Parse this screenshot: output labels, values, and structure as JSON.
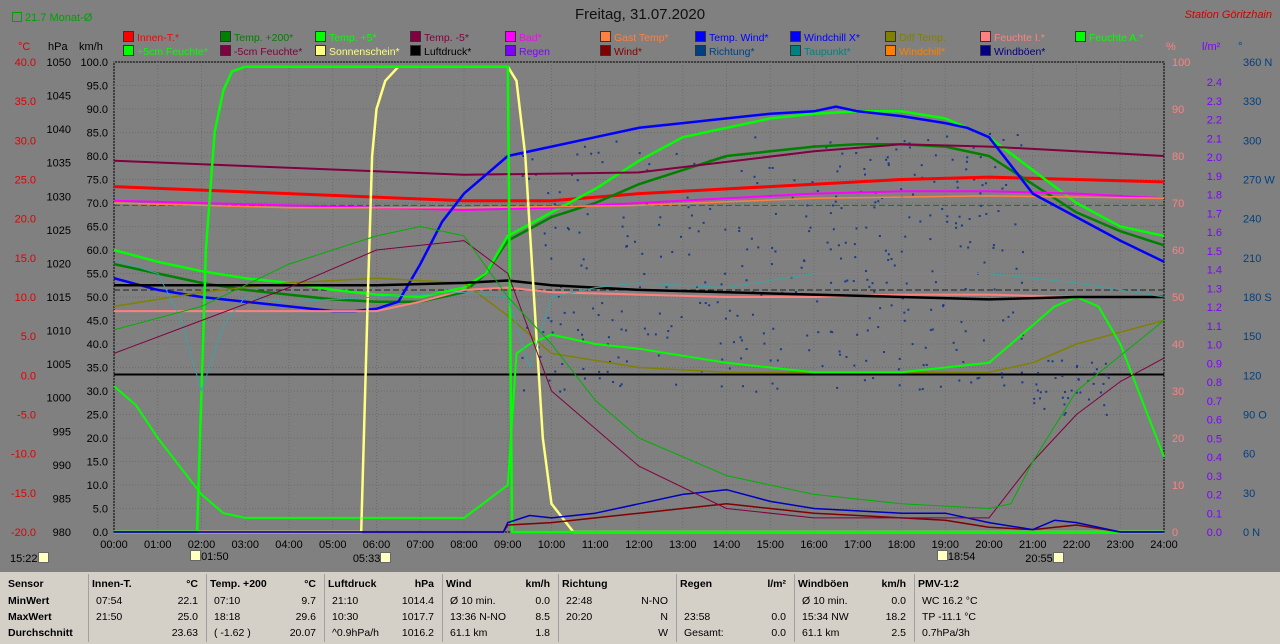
{
  "header": {
    "title": "Freitag, 31.07.2020",
    "station": "Station Göritzhain",
    "monat": "21.7 Monat-Ø"
  },
  "legend": [
    {
      "label": "Innen-T.*",
      "color": "#ff0000"
    },
    {
      "label": "Temp. +200*",
      "color": "#008000"
    },
    {
      "label": "Temp. +5*",
      "color": "#00ff00"
    },
    {
      "label": "Temp. -5*",
      "color": "#800040"
    },
    {
      "label": "Bad*",
      "color": "#ff00ff"
    },
    {
      "label": "Gast Temp*",
      "color": "#ff8040"
    },
    {
      "label": "Temp. Wind*",
      "color": "#0000ff"
    },
    {
      "label": "Windchill X*",
      "color": "#0000ff"
    },
    {
      "label": "Diff Temp.",
      "color": "#808000"
    },
    {
      "label": "Feuchte I.*",
      "color": "#ff8080"
    },
    {
      "label": "Feuchte A.*",
      "color": "#00ff00"
    },
    {
      "label": "+5cm Feuchte*",
      "color": "#00ff00"
    },
    {
      "label": "-5cm Feuchte*",
      "color": "#800040"
    },
    {
      "label": "Sonnenschein*",
      "color": "#ffff80"
    },
    {
      "label": "Luftdruck*",
      "color": "#000000"
    },
    {
      "label": "Regen",
      "color": "#8000ff"
    },
    {
      "label": "Wind*",
      "color": "#800000"
    },
    {
      "label": "Richtung*",
      "color": "#004080"
    },
    {
      "label": "Taupunkt*",
      "color": "#008080"
    },
    {
      "label": "Windchill*",
      "color": "#ff8000"
    },
    {
      "label": "Windböen*",
      "color": "#000080"
    }
  ],
  "axes": {
    "temp_unit": "°C",
    "hpa_unit": "hPa",
    "kmh_unit": "km/h",
    "pct_unit": "%",
    "rain_unit": "l/m²",
    "dir_unit": "°",
    "temp_ticks": [
      "40.0",
      "35.0",
      "30.0",
      "25.0",
      "20.0",
      "15.0",
      "10.0",
      "5.0",
      "0.0",
      "-5.0",
      "-10.0",
      "-15.0",
      "-20.0"
    ],
    "hpa_ticks": [
      "1050",
      "1045",
      "1040",
      "1035",
      "1030",
      "1025",
      "1020",
      "1015",
      "1010",
      "1005",
      "1000",
      "995",
      "990",
      "985",
      "980"
    ],
    "kmh_ticks": [
      "100.0",
      "95.0",
      "90.0",
      "85.0",
      "80.0",
      "75.0",
      "70.0",
      "65.0",
      "60.0",
      "55.0",
      "50.0",
      "45.0",
      "40.0",
      "35.0",
      "30.0",
      "25.0",
      "20.0",
      "15.0",
      "10.0",
      "5.0",
      "0.0"
    ],
    "pct_ticks": [
      "100",
      "90",
      "80",
      "70",
      "60",
      "50",
      "40",
      "30",
      "20",
      "10",
      "0"
    ],
    "rain_ticks": [
      "2.4",
      "2.3",
      "2.2",
      "2.1",
      "2.0",
      "1.9",
      "1.8",
      "1.7",
      "1.6",
      "1.5",
      "1.4",
      "1.3",
      "1.2",
      "1.1",
      "1.0",
      "0.9",
      "0.8",
      "0.7",
      "0.6",
      "0.5",
      "0.4",
      "0.3",
      "0.2",
      "0.1",
      "0.0"
    ],
    "dir_ticks": [
      "360 N",
      "330",
      "300",
      "270 W",
      "240",
      "210",
      "180 S",
      "150",
      "120",
      "90 O",
      "60",
      "30",
      "0 N"
    ],
    "time_ticks": [
      "00:00",
      "01:00",
      "02:00",
      "03:00",
      "04:00",
      "05:00",
      "06:00",
      "07:00",
      "08:00",
      "09:00",
      "10:00",
      "11:00",
      "12:00",
      "13:00",
      "14:00",
      "15:00",
      "16:00",
      "17:00",
      "18:00",
      "19:00",
      "20:00",
      "21:00",
      "22:00",
      "23:00",
      "24:00"
    ]
  },
  "markers": [
    {
      "label": "15:22",
      "hour": 0.2
    },
    {
      "label": "01:50",
      "hour": 1.83
    },
    {
      "label": "05:33",
      "hour": 5.55
    },
    {
      "label": "18:54",
      "hour": 18.9
    },
    {
      "label": "20:55",
      "hour": 20.92
    }
  ],
  "chart_data": {
    "type": "line",
    "x_unit": "hour",
    "xlim": [
      0,
      24
    ],
    "ylim_kmh": [
      0,
      100
    ],
    "series": [
      {
        "name": "Innen-T.*",
        "color": "#ff0000",
        "width": 3,
        "x": [
          0,
          4,
          8,
          10,
          12,
          14,
          16,
          18,
          20,
          22,
          24
        ],
        "y": [
          73.5,
          72,
          70.5,
          70.5,
          72,
          73,
          74,
          75,
          75.5,
          75,
          74.5
        ]
      },
      {
        "name": "Temp. +200*",
        "color": "#008000",
        "width": 2.5,
        "x": [
          0,
          1,
          2,
          3,
          4,
          5,
          6,
          7,
          8,
          8.5,
          9,
          10,
          11,
          12,
          13,
          14,
          15,
          16,
          17,
          18,
          19,
          20,
          21,
          22,
          23,
          24
        ],
        "y": [
          57,
          55,
          53,
          51.5,
          50.5,
          49.5,
          49,
          49,
          51,
          55,
          62,
          67,
          70,
          74,
          77,
          80,
          81,
          82,
          82.5,
          82.5,
          82,
          80,
          74,
          68,
          64,
          61
        ]
      },
      {
        "name": "Temp. +5*",
        "color": "#00ff00",
        "width": 2.5,
        "x": [
          0,
          1,
          2,
          3,
          4,
          5,
          6,
          7,
          8,
          8.5,
          9,
          10,
          11,
          12,
          13,
          14,
          15,
          16,
          17,
          18,
          19,
          20,
          21,
          22,
          23,
          24
        ],
        "y": [
          60,
          57.5,
          55.5,
          54,
          53,
          51.5,
          50.5,
          50,
          52,
          55,
          63,
          68,
          73,
          79,
          84,
          86,
          88,
          89,
          89.5,
          89.5,
          88,
          84,
          77,
          70,
          65,
          63
        ]
      },
      {
        "name": "Temp. -5*",
        "color": "#800040",
        "width": 2,
        "x": [
          0,
          4,
          8,
          12,
          16,
          18,
          20,
          22,
          24
        ],
        "y": [
          79,
          77.5,
          76,
          76.5,
          81,
          82.5,
          82,
          81,
          80
        ]
      },
      {
        "name": "Bad*",
        "color": "#ff00ff",
        "width": 2,
        "x": [
          0,
          4,
          8,
          10,
          12,
          14,
          16,
          18,
          20,
          22,
          24
        ],
        "y": [
          70.5,
          69.5,
          68.5,
          69,
          70,
          71,
          72,
          72.5,
          72.5,
          72,
          71
        ]
      },
      {
        "name": "Gast Temp*",
        "color": "#ff8040",
        "width": 1.5,
        "x": [
          0,
          4,
          8,
          12,
          16,
          20,
          24
        ],
        "y": [
          70,
          69,
          69,
          69.5,
          71,
          71.5,
          71
        ]
      },
      {
        "name": "Temp. Wind*",
        "color": "#0000ff",
        "width": 2.5,
        "x": [
          0,
          1,
          2,
          3,
          4,
          5,
          5.5,
          6,
          6.5,
          7,
          7.5,
          8,
          8.5,
          9,
          10,
          11,
          12,
          13,
          14,
          15,
          16,
          16.5,
          17,
          18,
          19,
          19.5,
          20,
          20.5,
          21,
          22,
          23,
          24
        ],
        "y": [
          54,
          51.5,
          50,
          49,
          48,
          47,
          47,
          47.5,
          49,
          57,
          66,
          72,
          76,
          80,
          82,
          84,
          86,
          87,
          88,
          89,
          89.5,
          90.5,
          89.5,
          88.5,
          87,
          86,
          84,
          78,
          72,
          67,
          62,
          57.5
        ]
      },
      {
        "name": "Diff Temp.",
        "color": "#808000",
        "width": 1.5,
        "x": [
          0,
          2,
          4,
          6,
          8,
          9,
          10,
          12,
          14,
          16,
          18,
          20,
          21,
          22,
          24
        ],
        "y": [
          48,
          51,
          53,
          54,
          53,
          46,
          38,
          35,
          34,
          34,
          34,
          34,
          36,
          40,
          45
        ]
      },
      {
        "name": "Feuchte I.*",
        "color": "#ff8080",
        "width": 2,
        "x": [
          0,
          2,
          4,
          6,
          7,
          8,
          9,
          10,
          12,
          14,
          16,
          18,
          20,
          22,
          24
        ],
        "y": [
          47,
          47,
          47,
          47,
          49,
          51.5,
          52,
          51,
          50.5,
          50,
          50,
          50.5,
          50.5,
          50,
          50
        ]
      },
      {
        "name": "+5cm Feuchte*",
        "color": "#00ff00",
        "width": 2,
        "x": [
          0,
          0.5,
          1,
          1.5,
          2,
          2.5,
          3,
          4,
          6,
          8,
          9,
          9.2,
          9.5,
          10,
          11,
          12,
          14,
          16,
          18,
          20,
          21,
          21.5,
          22,
          22.5,
          23,
          23.5,
          24
        ],
        "y": [
          31,
          27,
          20,
          14,
          8,
          4,
          3,
          3,
          3,
          3,
          10,
          38,
          40,
          42,
          40,
          39,
          36,
          34,
          34,
          36,
          44,
          48,
          50,
          48,
          40,
          28,
          16
        ]
      },
      {
        "name": "Luftdruck*",
        "color": "#000000",
        "width": 2.5,
        "x": [
          0,
          2,
          4,
          6,
          8,
          9,
          10,
          12,
          14,
          16,
          18,
          20,
          22,
          24
        ],
        "y": [
          52.5,
          52.5,
          52.5,
          52.5,
          53,
          53.5,
          52.5,
          51.5,
          51,
          50.5,
          50,
          49.5,
          50,
          50
        ]
      },
      {
        "name": "Sonnenschein*",
        "color": "#ffff80",
        "width": 2.5,
        "x": [
          0,
          5.65,
          5.8,
          5.9,
          6,
          6.2,
          6.5,
          7,
          8,
          9,
          9.2,
          9.4,
          9.6,
          9.8,
          10,
          10.5,
          24
        ],
        "y": [
          0,
          0,
          50,
          80,
          90,
          96,
          99,
          99,
          99,
          99,
          96,
          80,
          50,
          20,
          6,
          0,
          0
        ]
      },
      {
        "name": "Feuchte A.*",
        "color": "#00ff00",
        "width": 2.5,
        "x": [
          0,
          1.9,
          2.1,
          2.3,
          2.5,
          2.7,
          3,
          4,
          6,
          8,
          9,
          9.1,
          24
        ],
        "y": [
          0,
          0,
          60,
          85,
          94,
          98,
          99,
          99,
          99,
          99,
          99,
          0,
          0
        ]
      },
      {
        "name": "Wind*",
        "color": "#800000",
        "width": 1.5,
        "x": [
          0,
          8.9,
          9,
          10,
          11,
          12,
          13,
          14,
          15,
          16,
          17,
          18,
          19,
          20,
          21,
          22,
          23,
          24
        ],
        "y": [
          0,
          0,
          1.5,
          2,
          3,
          4,
          5,
          6,
          5,
          4,
          3.5,
          3,
          2.5,
          1,
          0.5,
          1.5,
          0,
          0
        ]
      },
      {
        "name": "Windböen*",
        "color": "#0000c0",
        "width": 1.5,
        "x": [
          0,
          8.9,
          9,
          9.5,
          10,
          11,
          12,
          13,
          14,
          15,
          16,
          17,
          18,
          19,
          20,
          21,
          21.5,
          22,
          23,
          24
        ],
        "y": [
          0,
          0,
          2,
          3.5,
          3,
          4,
          6,
          8,
          9,
          6.5,
          5,
          4.5,
          4,
          4,
          2,
          0.5,
          2.5,
          2,
          0,
          0
        ]
      },
      {
        "name": "Taupunkt*",
        "color": "#40a0a0",
        "width": 1,
        "x": [
          0,
          1,
          1.5,
          2,
          2.5,
          3,
          4,
          6,
          8,
          9,
          9.5,
          10,
          11,
          12,
          14,
          16,
          18,
          20,
          22,
          24
        ],
        "y": [
          58,
          55,
          46,
          30,
          44,
          50,
          49,
          50,
          51,
          50,
          35,
          50,
          52,
          53,
          52,
          55,
          55,
          55,
          53,
          50
        ]
      },
      {
        "name": "-5cm Feuchte*",
        "color": "#800040",
        "width": 1,
        "x": [
          0,
          2,
          4,
          6,
          8,
          9,
          10,
          12,
          14,
          16,
          18,
          20,
          21,
          22,
          23,
          24
        ],
        "y": [
          38,
          45,
          52,
          60,
          62,
          55,
          30,
          14,
          5,
          3,
          3,
          3,
          15,
          25,
          32,
          37
        ]
      },
      {
        "name": "Windchill*",
        "color": "#00b000",
        "width": 1,
        "x": [
          0,
          2,
          4,
          6,
          7,
          8,
          9,
          10,
          11,
          12,
          14,
          16,
          18,
          20,
          20.5,
          21,
          22,
          24
        ],
        "y": [
          43,
          48,
          57,
          63,
          65,
          63,
          50,
          40,
          28,
          20,
          12,
          8,
          6,
          5,
          6,
          15,
          30,
          45
        ]
      }
    ],
    "ref_lines": [
      {
        "name": "ref-black-1",
        "color": "#000000",
        "y": 33.5,
        "width": 2
      },
      {
        "name": "ref-dash-1",
        "color": "#202020",
        "y": 51.5,
        "width": 1,
        "dash": "6,3"
      },
      {
        "name": "ref-dash-2",
        "color": "#008000",
        "y": 69.5,
        "width": 1,
        "dash": "6,3"
      }
    ]
  },
  "table": {
    "row_labels": [
      "Sensor",
      "MinWert",
      "MaxWert",
      "Durchschnitt"
    ],
    "columns": [
      {
        "head": "Innen-T.",
        "unit": "°C",
        "rows": [
          [
            "07:54",
            "22.1"
          ],
          [
            "21:50",
            "25.0"
          ],
          [
            "",
            "23.63"
          ]
        ]
      },
      {
        "head": "Temp. +200",
        "unit": "°C",
        "rows": [
          [
            "07:10",
            "9.7"
          ],
          [
            "18:18",
            "29.6"
          ],
          [
            "( -1.62 )",
            "20.07"
          ]
        ]
      },
      {
        "head": "Luftdruck",
        "unit": "hPa",
        "rows": [
          [
            "21:10",
            "1014.4"
          ],
          [
            "10:30",
            "1017.7"
          ],
          [
            "^0.9hPa/h",
            "1016.2"
          ]
        ]
      },
      {
        "head": "Wind",
        "unit": "km/h",
        "rows": [
          [
            "Ø 10 min.",
            "0.0"
          ],
          [
            "13:36  N-NO",
            "8.5"
          ],
          [
            "61.1 km",
            "1.8"
          ]
        ]
      },
      {
        "head": "Richtung",
        "unit": "",
        "rows": [
          [
            "22:48",
            "N-NO"
          ],
          [
            "20:20",
            "N"
          ],
          [
            "",
            "W"
          ]
        ]
      },
      {
        "head": "Regen",
        "unit": "l/m²",
        "rows": [
          [
            "",
            ""
          ],
          [
            "23:58",
            "0.0"
          ],
          [
            "Gesamt:",
            "0.0"
          ]
        ]
      },
      {
        "head": "Windböen",
        "unit": "km/h",
        "rows": [
          [
            "Ø 10 min.",
            "0.0"
          ],
          [
            "15:34  NW",
            "18.2"
          ],
          [
            "61.1 km",
            "2.5"
          ]
        ]
      },
      {
        "head": "PMV-1:2",
        "unit": "",
        "rows": [
          [
            "WC 16.2 °C",
            ""
          ],
          [
            "TP -11.1 °C",
            ""
          ],
          [
            "0.7hPa/3h",
            ""
          ]
        ]
      }
    ]
  }
}
